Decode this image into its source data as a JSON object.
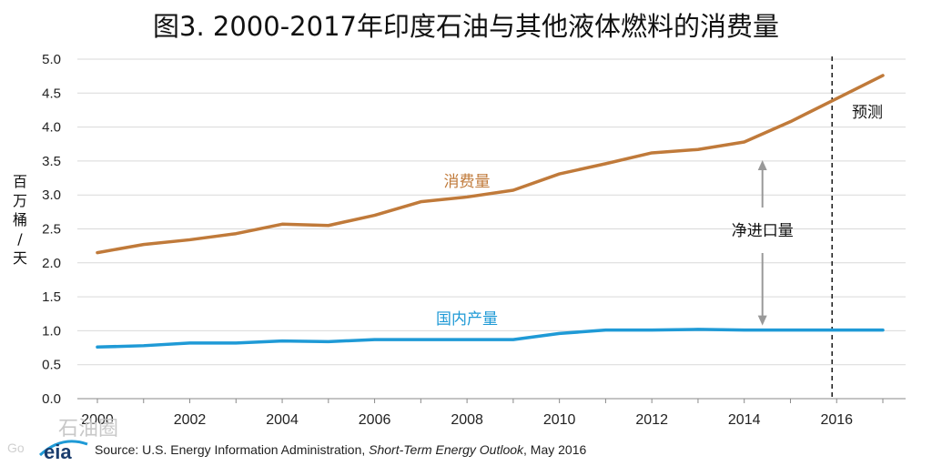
{
  "chart_data": {
    "type": "line",
    "title": "图3. 2000-2017年印度石油与其他液体燃料的消费量",
    "ylabel": "百万桶/天",
    "xlabel": "",
    "ylim": [
      0,
      5
    ],
    "xlim": [
      2000,
      2017
    ],
    "yticks": [
      "0.0",
      "0.5",
      "1.0",
      "1.5",
      "2.0",
      "2.5",
      "3.0",
      "3.5",
      "4.0",
      "4.5",
      "5.0"
    ],
    "xticks": [
      "2000",
      "2002",
      "2004",
      "2006",
      "2008",
      "2010",
      "2012",
      "2014",
      "2016"
    ],
    "grid": "horizontal",
    "x": [
      2000,
      2001,
      2002,
      2003,
      2004,
      2005,
      2006,
      2007,
      2008,
      2009,
      2010,
      2011,
      2012,
      2013,
      2014,
      2015,
      2016,
      2017
    ],
    "series": [
      {
        "name": "消费量",
        "color": "#c07a3a",
        "values": [
          2.15,
          2.27,
          2.34,
          2.43,
          2.57,
          2.55,
          2.7,
          2.9,
          2.97,
          3.07,
          3.31,
          3.46,
          3.62,
          3.67,
          3.78,
          4.08,
          4.42,
          4.76
        ]
      },
      {
        "name": "国内产量",
        "color": "#1f9ad6",
        "values": [
          0.76,
          0.78,
          0.82,
          0.82,
          0.85,
          0.84,
          0.87,
          0.87,
          0.87,
          0.87,
          0.96,
          1.01,
          1.01,
          1.02,
          1.01,
          1.01,
          1.01,
          1.01
        ]
      }
    ],
    "forecast_start": 2016,
    "annotations": {
      "forecast_label": "预测",
      "import_label": "净进口量"
    }
  },
  "source": {
    "prefix": "Source: U.S. Energy Information Administration, ",
    "report": "Short-Term Energy Outlook",
    "suffix": ", May 2016"
  },
  "logo_text": "eia",
  "watermark": {
    "text": "石油圈",
    "sub": "Go"
  }
}
